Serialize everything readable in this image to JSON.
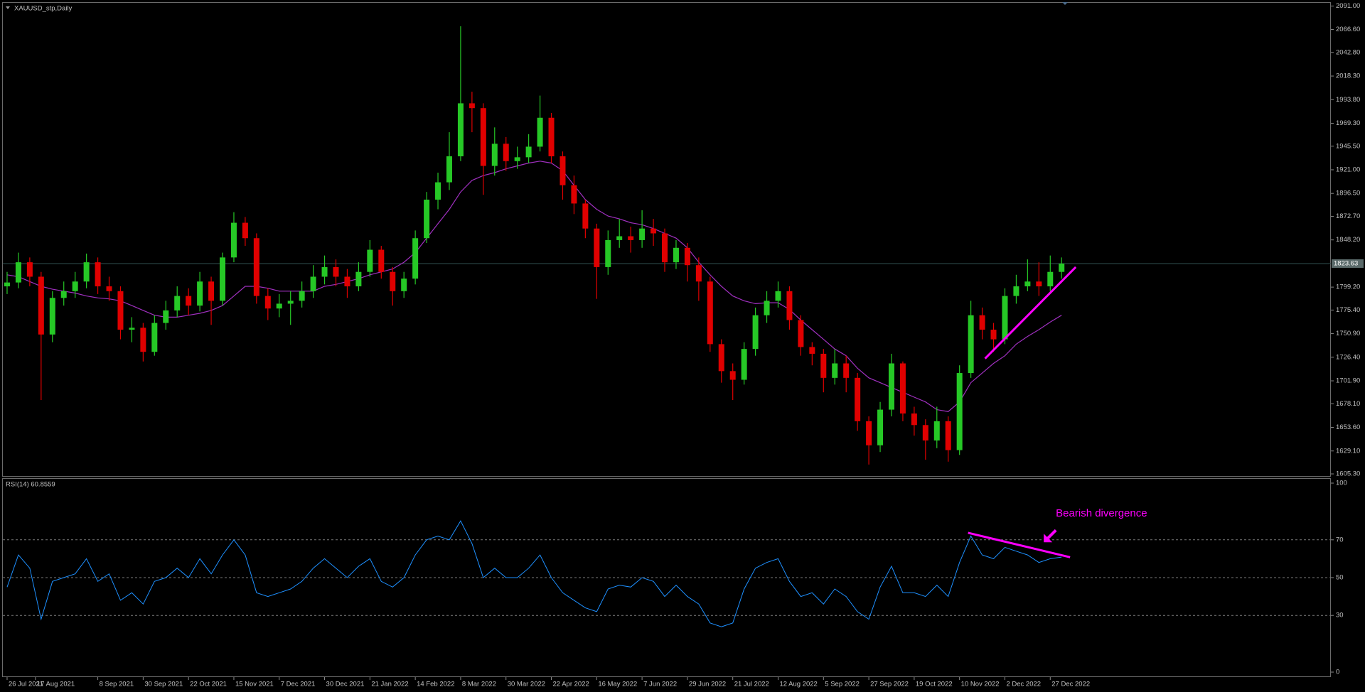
{
  "chart_data": [
    {
      "type": "candlestick",
      "title": "XAUUSD_stp,Daily",
      "x": [
        0,
        4,
        8,
        12,
        16,
        20,
        24,
        28,
        32,
        36,
        40,
        44,
        48,
        52,
        56,
        60,
        64,
        68,
        72,
        76,
        80,
        84,
        88,
        92,
        96,
        100,
        104,
        108,
        112,
        116,
        120,
        124,
        128,
        132,
        136,
        140,
        144,
        148,
        152,
        156,
        160,
        164,
        168,
        172,
        176,
        180,
        184,
        188,
        192,
        196,
        200,
        204,
        208,
        212,
        216,
        220,
        224,
        228,
        232,
        236,
        240,
        244,
        248,
        252,
        256,
        260,
        264,
        268,
        272,
        276,
        280,
        284,
        288,
        292,
        296,
        300,
        304,
        308,
        312,
        316,
        320,
        324,
        328,
        332,
        336,
        340,
        344,
        348,
        352,
        356,
        360,
        364,
        368,
        372
      ],
      "open": [
        1800,
        1804,
        1825,
        1810,
        1750,
        1788,
        1795,
        1805,
        1825,
        1800,
        1795,
        1755,
        1757,
        1732,
        1762,
        1775,
        1790,
        1780,
        1805,
        1785,
        1830,
        1866,
        1850,
        1790,
        1777,
        1782,
        1785,
        1795,
        1810,
        1820,
        1810,
        1800,
        1815,
        1838,
        1815,
        1795,
        1808,
        1850,
        1890,
        1908,
        1935,
        1990,
        1985,
        1925,
        1948,
        1930,
        1934,
        1945,
        1975,
        1935,
        1905,
        1886,
        1860,
        1820,
        1848,
        1852,
        1848,
        1860,
        1855,
        1825,
        1840,
        1822,
        1805,
        1740,
        1712,
        1703,
        1735,
        1770,
        1785,
        1795,
        1765,
        1737,
        1730,
        1705,
        1720,
        1705,
        1660,
        1635,
        1672,
        1720,
        1668,
        1656,
        1640,
        1660,
        1630,
        1710,
        1770,
        1755,
        1745,
        1790,
        1800,
        1805,
        1800,
        1815
      ],
      "high": [
        1815,
        1835,
        1830,
        1815,
        1795,
        1805,
        1815,
        1834,
        1830,
        1810,
        1800,
        1768,
        1762,
        1770,
        1785,
        1800,
        1798,
        1815,
        1810,
        1835,
        1877,
        1872,
        1855,
        1798,
        1792,
        1795,
        1805,
        1822,
        1832,
        1828,
        1818,
        1825,
        1848,
        1842,
        1820,
        1815,
        1858,
        1898,
        1918,
        1960,
        2070,
        2002,
        1990,
        1965,
        1955,
        1945,
        1958,
        1998,
        1980,
        1940,
        1915,
        1890,
        1865,
        1858,
        1870,
        1862,
        1879,
        1870,
        1860,
        1848,
        1845,
        1830,
        1810,
        1745,
        1720,
        1742,
        1778,
        1795,
        1805,
        1800,
        1770,
        1742,
        1735,
        1735,
        1728,
        1710,
        1665,
        1680,
        1730,
        1722,
        1675,
        1662,
        1675,
        1665,
        1718,
        1785,
        1778,
        1762,
        1798,
        1812,
        1828,
        1825,
        1832,
        1830
      ],
      "low": [
        1792,
        1798,
        1800,
        1682,
        1742,
        1780,
        1788,
        1798,
        1792,
        1785,
        1745,
        1742,
        1722,
        1728,
        1755,
        1768,
        1770,
        1774,
        1760,
        1780,
        1825,
        1842,
        1782,
        1765,
        1768,
        1760,
        1778,
        1788,
        1802,
        1800,
        1788,
        1795,
        1810,
        1808,
        1780,
        1788,
        1802,
        1845,
        1880,
        1900,
        1930,
        1960,
        1895,
        1915,
        1920,
        1922,
        1928,
        1940,
        1928,
        1890,
        1875,
        1850,
        1787,
        1812,
        1840,
        1835,
        1840,
        1842,
        1815,
        1818,
        1805,
        1785,
        1732,
        1700,
        1682,
        1698,
        1728,
        1762,
        1778,
        1755,
        1728,
        1718,
        1690,
        1698,
        1690,
        1650,
        1615,
        1628,
        1665,
        1660,
        1645,
        1620,
        1632,
        1618,
        1625,
        1705,
        1745,
        1732,
        1740,
        1782,
        1795,
        1790,
        1795,
        1808
      ],
      "close": [
        1804,
        1825,
        1810,
        1750,
        1788,
        1795,
        1805,
        1825,
        1800,
        1795,
        1755,
        1757,
        1732,
        1762,
        1775,
        1790,
        1780,
        1805,
        1785,
        1830,
        1866,
        1850,
        1790,
        1777,
        1782,
        1785,
        1795,
        1810,
        1820,
        1810,
        1800,
        1815,
        1838,
        1815,
        1795,
        1808,
        1850,
        1890,
        1908,
        1935,
        1990,
        1985,
        1925,
        1948,
        1930,
        1934,
        1945,
        1975,
        1935,
        1905,
        1886,
        1860,
        1820,
        1848,
        1852,
        1848,
        1860,
        1855,
        1825,
        1840,
        1822,
        1805,
        1740,
        1712,
        1703,
        1735,
        1770,
        1785,
        1795,
        1765,
        1737,
        1730,
        1705,
        1720,
        1705,
        1660,
        1635,
        1672,
        1720,
        1668,
        1656,
        1640,
        1660,
        1630,
        1710,
        1770,
        1755,
        1745,
        1790,
        1800,
        1805,
        1800,
        1815,
        1823.63
      ],
      "up_color": "#26c826",
      "down_color": "#e00000",
      "ma": {
        "color": "#a030c0",
        "values": [
          1812,
          1810,
          1805,
          1800,
          1797,
          1795,
          1793,
          1790,
          1788,
          1787,
          1785,
          1780,
          1775,
          1770,
          1768,
          1768,
          1770,
          1772,
          1775,
          1780,
          1790,
          1800,
          1800,
          1798,
          1795,
          1795,
          1795,
          1795,
          1800,
          1802,
          1805,
          1808,
          1812,
          1815,
          1818,
          1825,
          1835,
          1850,
          1865,
          1880,
          1898,
          1910,
          1915,
          1918,
          1922,
          1925,
          1928,
          1930,
          1928,
          1920,
          1905,
          1890,
          1880,
          1873,
          1870,
          1866,
          1864,
          1860,
          1855,
          1850,
          1840,
          1825,
          1812,
          1800,
          1790,
          1785,
          1782,
          1783,
          1783,
          1776,
          1765,
          1755,
          1745,
          1735,
          1728,
          1715,
          1705,
          1700,
          1695,
          1690,
          1685,
          1680,
          1672,
          1670,
          1680,
          1700,
          1710,
          1720,
          1728,
          1740,
          1748,
          1755,
          1763,
          1770
        ]
      },
      "current_price": 1823.63,
      "current_price_color": "#2f4f4f",
      "trendlines": [
        {
          "x": [
            345,
            377
          ],
          "values": [
            1725,
            1820
          ],
          "color": "#ff00ff"
        }
      ],
      "xlim": [
        -1.5,
        467
      ],
      "ylim": [
        1603.1,
        2094.3
      ],
      "yticks": [
        {
          "value": 2091,
          "label": "2091.00"
        },
        {
          "value": 2066.6,
          "label": "2066.60"
        },
        {
          "value": 2042.8,
          "label": "2042.80"
        },
        {
          "value": 2018.3,
          "label": "2018.30"
        },
        {
          "value": 1993.8,
          "label": "1993.80"
        },
        {
          "value": 1969.3,
          "label": "1969.30"
        },
        {
          "value": 1945.5,
          "label": "1945.50"
        },
        {
          "value": 1921,
          "label": "1921.00"
        },
        {
          "value": 1896.5,
          "label": "1896.50"
        },
        {
          "value": 1872.7,
          "label": "1872.70"
        },
        {
          "value": 1848.2,
          "label": "1848.20"
        },
        {
          "value": 1799.2,
          "label": "1799.20"
        },
        {
          "value": 1775.4,
          "label": "1775.40"
        },
        {
          "value": 1750.9,
          "label": "1750.90"
        },
        {
          "value": 1726.4,
          "label": "1726.40"
        },
        {
          "value": 1701.9,
          "label": "1701.90"
        },
        {
          "value": 1678.1,
          "label": "1678.10"
        },
        {
          "value": 1653.6,
          "label": "1653.60"
        },
        {
          "value": 1629.1,
          "label": "1629.10"
        },
        {
          "value": 1605.3,
          "label": "1605.30"
        }
      ],
      "xticks": [
        {
          "value": 0,
          "label": "26 Jul 2021"
        },
        {
          "value": 10,
          "label": "17 Aug 2021"
        },
        {
          "value": 32,
          "label": "8 Sep 2021"
        },
        {
          "value": 48,
          "label": "30 Sep 2021"
        },
        {
          "value": 64,
          "label": "22 Oct 2021"
        },
        {
          "value": 80,
          "label": "15 Nov 2021"
        },
        {
          "value": 96,
          "label": "7 Dec 2021"
        },
        {
          "value": 112,
          "label": "30 Dec 2021"
        },
        {
          "value": 128,
          "label": "21 Jan 2022"
        },
        {
          "value": 144,
          "label": "14 Feb 2022"
        },
        {
          "value": 160,
          "label": "8 Mar 2022"
        },
        {
          "value": 176,
          "label": "30 Mar 2022"
        },
        {
          "value": 192,
          "label": "22 Apr 2022"
        },
        {
          "value": 208,
          "label": "16 May 2022"
        },
        {
          "value": 224,
          "label": "7 Jun 2022"
        },
        {
          "value": 240,
          "label": "29 Jun 2022"
        },
        {
          "value": 256,
          "label": "21 Jul 2022"
        },
        {
          "value": 272,
          "label": "12 Aug 2022"
        },
        {
          "value": 288,
          "label": "5 Sep 2022"
        },
        {
          "value": 304,
          "label": "27 Sep 2022"
        },
        {
          "value": 320,
          "label": "19 Oct 2022"
        },
        {
          "value": 336,
          "label": "10 Nov 2022"
        },
        {
          "value": 352,
          "label": "2 Dec 2022"
        },
        {
          "value": 368,
          "label": "27 Dec 2022"
        }
      ]
    },
    {
      "type": "line",
      "title": "RSI(14) 60.8559",
      "x": [
        0,
        4,
        8,
        12,
        16,
        20,
        24,
        28,
        32,
        36,
        40,
        44,
        48,
        52,
        56,
        60,
        64,
        68,
        72,
        76,
        80,
        84,
        88,
        92,
        96,
        100,
        104,
        108,
        112,
        116,
        120,
        124,
        128,
        132,
        136,
        140,
        144,
        148,
        152,
        156,
        160,
        164,
        168,
        172,
        176,
        180,
        184,
        188,
        192,
        196,
        200,
        204,
        208,
        212,
        216,
        220,
        224,
        228,
        232,
        236,
        240,
        244,
        248,
        252,
        256,
        260,
        264,
        268,
        272,
        276,
        280,
        284,
        288,
        292,
        296,
        300,
        304,
        308,
        312,
        316,
        320,
        324,
        328,
        332,
        336,
        340,
        344,
        348,
        352,
        356,
        360,
        364,
        368,
        372
      ],
      "series": [
        {
          "color": "#1e90ff",
          "values": [
            45,
            62,
            55,
            28,
            48,
            50,
            52,
            60,
            48,
            52,
            38,
            42,
            36,
            48,
            50,
            55,
            50,
            60,
            52,
            62,
            70,
            62,
            42,
            40,
            42,
            44,
            48,
            55,
            60,
            55,
            50,
            56,
            60,
            48,
            45,
            50,
            62,
            70,
            72,
            70,
            80,
            68,
            50,
            55,
            50,
            50,
            55,
            62,
            50,
            42,
            38,
            34,
            32,
            44,
            46,
            45,
            50,
            48,
            40,
            46,
            40,
            36,
            26,
            24,
            26,
            44,
            55,
            58,
            60,
            48,
            40,
            42,
            36,
            44,
            40,
            32,
            28,
            45,
            56,
            42,
            42,
            40,
            46,
            40,
            58,
            72,
            62,
            60,
            66,
            64,
            62,
            58,
            60,
            60.8559
          ]
        }
      ],
      "levels": [
        70,
        50,
        30
      ],
      "trendlines": [
        {
          "x": [
            339,
            375
          ],
          "values": [
            73.7,
            60.8
          ],
          "color": "#ff00ff"
        }
      ],
      "annotation": "Bearish divergence",
      "annotation_color": "#ff00ff",
      "xlim": [
        -1.5,
        467
      ],
      "ylim": [
        0,
        100
      ],
      "yticks": [
        100,
        70,
        50,
        30,
        0
      ]
    }
  ]
}
